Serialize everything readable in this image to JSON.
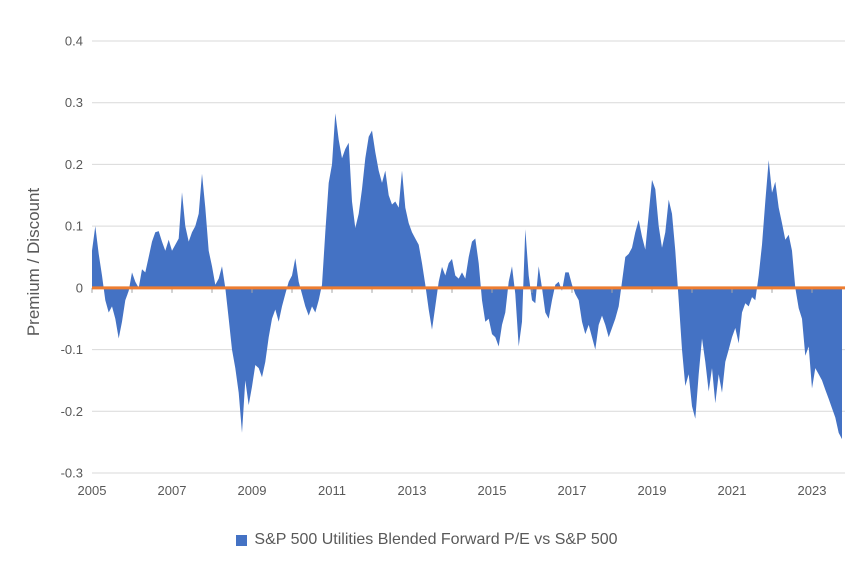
{
  "page": {
    "background": "#FFFFFF"
  },
  "chart_data": {
    "type": "area",
    "title": "",
    "xlabel": "",
    "ylabel": "Premium / Discount",
    "ylim": [
      -0.3,
      0.4
    ],
    "y_tick_step": 0.1,
    "y_tick_labels": [
      "0.4",
      "0.3",
      "0.2",
      "0.1",
      "0",
      "-0.1",
      "-0.2",
      "-0.3"
    ],
    "x_tick_labels": [
      "2005",
      "2007",
      "2009",
      "2011",
      "2013",
      "2015",
      "2017",
      "2019",
      "2021",
      "2023"
    ],
    "x_start_year": 2005,
    "x_tick_interval_years": 2,
    "points_per_year": 12,
    "grid": true,
    "legend_position": "bottom",
    "zero_line": {
      "value": 0,
      "color": "#ED7D31"
    },
    "colors": {
      "area_fill": "#4472C4",
      "gridline": "#D9D9D9",
      "axis_text": "#595959",
      "tick_mark": "#A6A6A6"
    },
    "series": [
      {
        "name": "S&P 500 Utilities Blended Forward P/E vs S&P 500",
        "color": "#4472C4",
        "start": "2005-01",
        "frequency": "monthly",
        "values": [
          0.06,
          0.1,
          0.055,
          0.02,
          -0.02,
          -0.04,
          -0.03,
          -0.05,
          -0.082,
          -0.055,
          -0.02,
          -0.005,
          0.025,
          0.01,
          0.0,
          0.03,
          0.025,
          0.05,
          0.075,
          0.09,
          0.092,
          0.075,
          0.06,
          0.078,
          0.06,
          0.07,
          0.08,
          0.155,
          0.1,
          0.075,
          0.09,
          0.1,
          0.12,
          0.185,
          0.13,
          0.06,
          0.035,
          0.005,
          0.015,
          0.035,
          0.0,
          -0.05,
          -0.1,
          -0.13,
          -0.17,
          -0.235,
          -0.15,
          -0.19,
          -0.16,
          -0.125,
          -0.13,
          -0.145,
          -0.12,
          -0.08,
          -0.05,
          -0.035,
          -0.055,
          -0.03,
          -0.01,
          0.01,
          0.02,
          0.048,
          0.01,
          -0.01,
          -0.03,
          -0.045,
          -0.03,
          -0.04,
          -0.02,
          0.005,
          0.09,
          0.17,
          0.2,
          0.283,
          0.24,
          0.21,
          0.225,
          0.235,
          0.14,
          0.097,
          0.12,
          0.16,
          0.21,
          0.245,
          0.255,
          0.22,
          0.19,
          0.17,
          0.19,
          0.15,
          0.135,
          0.14,
          0.13,
          0.19,
          0.13,
          0.105,
          0.09,
          0.08,
          0.07,
          0.04,
          0.005,
          -0.035,
          -0.068,
          -0.03,
          0.01,
          0.034,
          0.02,
          0.04,
          0.047,
          0.02,
          0.015,
          0.025,
          0.015,
          0.05,
          0.075,
          0.08,
          0.04,
          -0.02,
          -0.055,
          -0.05,
          -0.075,
          -0.08,
          -0.095,
          -0.06,
          -0.04,
          0.01,
          0.035,
          -0.01,
          -0.095,
          -0.055,
          0.095,
          0.02,
          -0.02,
          -0.025,
          0.035,
          0.0,
          -0.04,
          -0.05,
          -0.02,
          0.005,
          0.01,
          -0.005,
          0.025,
          0.025,
          0.005,
          -0.01,
          -0.02,
          -0.055,
          -0.075,
          -0.06,
          -0.08,
          -0.1,
          -0.06,
          -0.045,
          -0.06,
          -0.08,
          -0.065,
          -0.05,
          -0.03,
          0.01,
          0.05,
          0.055,
          0.065,
          0.09,
          0.11,
          0.083,
          0.062,
          0.12,
          0.175,
          0.16,
          0.1,
          0.065,
          0.09,
          0.143,
          0.12,
          0.06,
          -0.02,
          -0.1,
          -0.159,
          -0.14,
          -0.192,
          -0.212,
          -0.14,
          -0.082,
          -0.12,
          -0.168,
          -0.13,
          -0.187,
          -0.14,
          -0.17,
          -0.12,
          -0.1,
          -0.08,
          -0.065,
          -0.09,
          -0.04,
          -0.025,
          -0.03,
          -0.015,
          -0.02,
          0.02,
          0.07,
          0.14,
          0.207,
          0.154,
          0.172,
          0.13,
          0.105,
          0.078,
          0.086,
          0.06,
          0.0,
          -0.033,
          -0.05,
          -0.11,
          -0.095,
          -0.163,
          -0.13,
          -0.14,
          -0.15,
          -0.165,
          -0.18,
          -0.195,
          -0.21,
          -0.235,
          -0.245
        ]
      }
    ]
  }
}
